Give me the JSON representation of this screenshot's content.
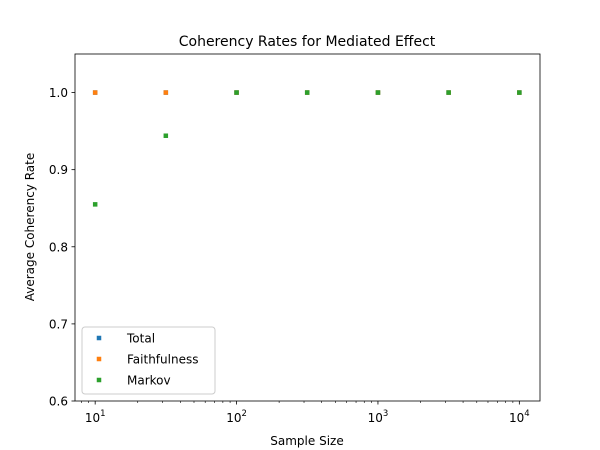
{
  "chart_data": {
    "type": "scatter",
    "title": "Coherency Rates for Mediated Effect",
    "xlabel": "Sample Size",
    "ylabel": "Average Coherency Rate",
    "xscale": "log",
    "xlim": [
      7.2,
      14000
    ],
    "ylim": [
      0.6,
      1.05
    ],
    "x": [
      10,
      31.6,
      100,
      316,
      1000,
      3162,
      10000
    ],
    "x_ticks": [
      {
        "value": 10,
        "base": "10",
        "exp": "1"
      },
      {
        "value": 100,
        "base": "10",
        "exp": "2"
      },
      {
        "value": 1000,
        "base": "10",
        "exp": "3"
      },
      {
        "value": 10000,
        "base": "10",
        "exp": "4"
      }
    ],
    "y_ticks": [
      {
        "value": 0.6,
        "label": "0.6"
      },
      {
        "value": 0.7,
        "label": "0.7"
      },
      {
        "value": 0.8,
        "label": "0.8"
      },
      {
        "value": 0.9,
        "label": "0.9"
      },
      {
        "value": 1.0,
        "label": "1.0"
      }
    ],
    "grid": false,
    "legend_position": "lower-left",
    "series": [
      {
        "name": "Total",
        "color": "#1f77b4",
        "values": [
          1.0,
          1.0,
          1.0,
          1.0,
          1.0,
          1.0,
          1.0
        ]
      },
      {
        "name": "Faithfulness",
        "color": "#ff7f0e",
        "values": [
          1.0,
          1.0,
          1.0,
          1.0,
          1.0,
          1.0,
          1.0
        ]
      },
      {
        "name": "Markov",
        "color": "#2ca02c",
        "values": [
          0.855,
          0.944,
          1.0,
          1.0,
          1.0,
          1.0,
          1.0
        ]
      }
    ]
  }
}
